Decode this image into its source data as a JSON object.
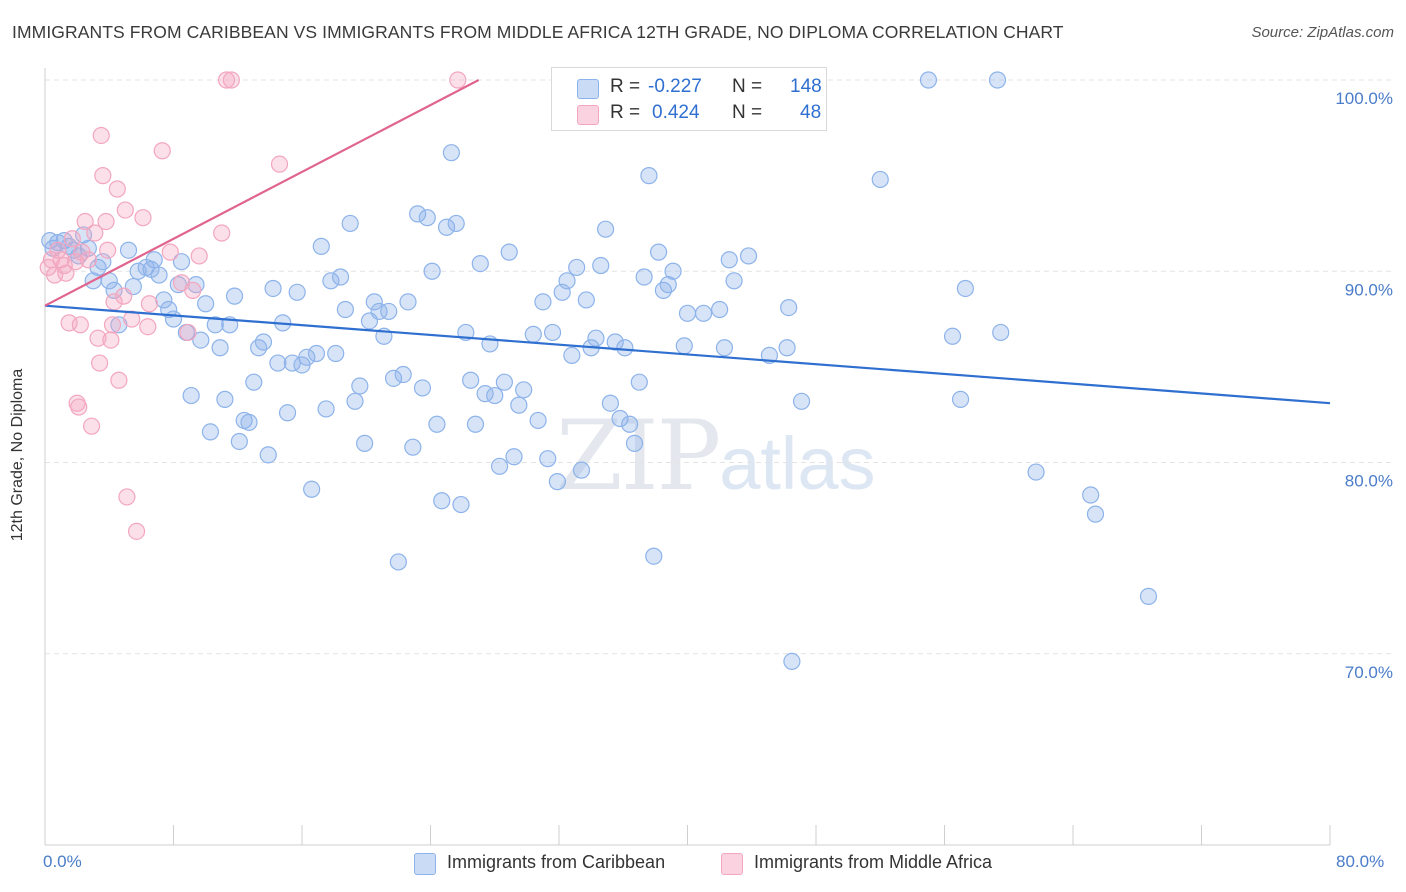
{
  "title": "IMMIGRANTS FROM CARIBBEAN VS IMMIGRANTS FROM MIDDLE AFRICA 12TH GRADE, NO DIPLOMA CORRELATION CHART",
  "source": "Source: ZipAtlas.com",
  "watermark": {
    "zip": "ZIP",
    "atlas": "atlas"
  },
  "legend_top": [
    {
      "r_label": "R =",
      "r_value": "-0.227",
      "n_label": "N =",
      "n_value": "148",
      "color": "#8db3ea"
    },
    {
      "r_label": "R =",
      "r_value": "0.424",
      "n_label": "N =",
      "n_value": "48",
      "color": "#f3a6bf"
    }
  ],
  "legend_bottom": [
    {
      "label": "Immigrants from Caribbean",
      "color": "#8db3ea"
    },
    {
      "label": "Immigrants from Middle Africa",
      "color": "#f3a6bf"
    }
  ],
  "chart_data": {
    "type": "scatter",
    "title": "IMMIGRANTS FROM CARIBBEAN VS IMMIGRANTS FROM MIDDLE AFRICA 12TH GRADE, NO DIPLOMA CORRELATION CHART",
    "xlabel": "",
    "ylabel": "12th Grade, No Diploma",
    "xlim": [
      0,
      80
    ],
    "ylim": [
      60,
      101
    ],
    "x_tick_labels": [
      "0.0%",
      "80.0%"
    ],
    "y_tick_labels": [
      "100.0%",
      "90.0%",
      "80.0%",
      "70.0%"
    ],
    "y_ticks": [
      100,
      90,
      80,
      70
    ],
    "grid": true,
    "legend_placement": "bottom",
    "series": [
      {
        "name": "Immigrants from Caribbean",
        "color": "#8db3ea",
        "trend": {
          "x": [
            0,
            80
          ],
          "y": [
            88.2,
            83.1
          ]
        },
        "points": [
          [
            0.3,
            91.6
          ],
          [
            0.5,
            91.2
          ],
          [
            0.8,
            91.5
          ],
          [
            1.2,
            91.6
          ],
          [
            1.5,
            91.3
          ],
          [
            1.8,
            91.1
          ],
          [
            2.1,
            90.8
          ],
          [
            2.4,
            91.9
          ],
          [
            2.7,
            91.2
          ],
          [
            3.0,
            89.5
          ],
          [
            3.3,
            90.2
          ],
          [
            3.6,
            90.5
          ],
          [
            4.0,
            89.5
          ],
          [
            4.3,
            89.0
          ],
          [
            4.6,
            87.2
          ],
          [
            5.2,
            91.1
          ],
          [
            5.5,
            89.2
          ],
          [
            5.8,
            90.0
          ],
          [
            6.3,
            90.2
          ],
          [
            6.6,
            90.1
          ],
          [
            6.8,
            90.6
          ],
          [
            7.1,
            89.8
          ],
          [
            7.4,
            88.5
          ],
          [
            7.7,
            88.0
          ],
          [
            8.0,
            87.5
          ],
          [
            8.3,
            89.3
          ],
          [
            8.5,
            90.5
          ],
          [
            8.8,
            86.8
          ],
          [
            9.1,
            83.5
          ],
          [
            9.4,
            89.3
          ],
          [
            9.7,
            86.4
          ],
          [
            10.0,
            88.3
          ],
          [
            10.3,
            81.6
          ],
          [
            10.6,
            87.2
          ],
          [
            10.9,
            86.0
          ],
          [
            11.2,
            83.3
          ],
          [
            11.5,
            87.2
          ],
          [
            11.8,
            88.7
          ],
          [
            12.1,
            81.1
          ],
          [
            12.4,
            82.2
          ],
          [
            12.7,
            82.1
          ],
          [
            13.0,
            84.2
          ],
          [
            13.3,
            86.0
          ],
          [
            13.6,
            86.3
          ],
          [
            13.9,
            80.4
          ],
          [
            14.2,
            89.1
          ],
          [
            14.5,
            85.2
          ],
          [
            14.8,
            87.3
          ],
          [
            15.1,
            82.6
          ],
          [
            15.4,
            85.2
          ],
          [
            15.7,
            88.9
          ],
          [
            16.0,
            85.1
          ],
          [
            16.3,
            85.5
          ],
          [
            16.6,
            78.6
          ],
          [
            16.9,
            85.7
          ],
          [
            17.2,
            91.3
          ],
          [
            17.5,
            82.8
          ],
          [
            17.8,
            89.5
          ],
          [
            18.1,
            85.7
          ],
          [
            18.4,
            89.7
          ],
          [
            18.7,
            88.0
          ],
          [
            19.0,
            92.5
          ],
          [
            19.3,
            83.2
          ],
          [
            19.6,
            84.0
          ],
          [
            19.9,
            81.0
          ],
          [
            20.2,
            87.4
          ],
          [
            20.5,
            88.4
          ],
          [
            20.8,
            87.9
          ],
          [
            21.1,
            86.6
          ],
          [
            21.4,
            87.9
          ],
          [
            21.7,
            84.4
          ],
          [
            22.0,
            74.8
          ],
          [
            22.3,
            84.6
          ],
          [
            22.6,
            88.4
          ],
          [
            22.9,
            80.8
          ],
          [
            23.2,
            93.0
          ],
          [
            23.5,
            83.9
          ],
          [
            23.8,
            92.8
          ],
          [
            24.1,
            90.0
          ],
          [
            24.4,
            82.0
          ],
          [
            24.7,
            78.0
          ],
          [
            25.0,
            92.3
          ],
          [
            25.3,
            96.2
          ],
          [
            25.6,
            92.5
          ],
          [
            25.9,
            77.8
          ],
          [
            26.2,
            86.8
          ],
          [
            26.5,
            84.3
          ],
          [
            26.8,
            82.0
          ],
          [
            27.1,
            90.4
          ],
          [
            27.4,
            83.6
          ],
          [
            27.7,
            86.2
          ],
          [
            28.0,
            83.5
          ],
          [
            28.3,
            79.8
          ],
          [
            28.6,
            84.2
          ],
          [
            28.9,
            91.0
          ],
          [
            29.2,
            80.3
          ],
          [
            29.5,
            83.0
          ],
          [
            29.8,
            83.8
          ],
          [
            30.4,
            86.7
          ],
          [
            30.7,
            82.2
          ],
          [
            31.0,
            88.4
          ],
          [
            31.3,
            80.2
          ],
          [
            31.6,
            86.8
          ],
          [
            31.9,
            79.0
          ],
          [
            32.2,
            88.9
          ],
          [
            32.5,
            89.5
          ],
          [
            32.8,
            85.6
          ],
          [
            33.1,
            90.2
          ],
          [
            33.4,
            79.6
          ],
          [
            33.7,
            88.5
          ],
          [
            34.0,
            86.0
          ],
          [
            34.3,
            86.5
          ],
          [
            34.6,
            90.3
          ],
          [
            34.9,
            92.2
          ],
          [
            35.2,
            83.1
          ],
          [
            35.5,
            86.3
          ],
          [
            35.8,
            82.3
          ],
          [
            36.1,
            86.0
          ],
          [
            36.4,
            82.0
          ],
          [
            36.7,
            81.0
          ],
          [
            37.0,
            84.2
          ],
          [
            37.3,
            89.7
          ],
          [
            37.6,
            95.0
          ],
          [
            37.9,
            75.1
          ],
          [
            38.2,
            91.0
          ],
          [
            38.5,
            89.0
          ],
          [
            38.8,
            89.3
          ],
          [
            39.1,
            90.0
          ],
          [
            39.8,
            86.1
          ],
          [
            40.0,
            87.8
          ],
          [
            41.0,
            87.8
          ],
          [
            42.0,
            88.0
          ],
          [
            42.3,
            86.0
          ],
          [
            42.6,
            90.6
          ],
          [
            42.9,
            89.5
          ],
          [
            43.8,
            90.8
          ],
          [
            45.1,
            85.6
          ],
          [
            46.3,
            88.1
          ],
          [
            52.0,
            94.8
          ],
          [
            56.5,
            86.6
          ],
          [
            57.0,
            83.3
          ],
          [
            57.3,
            89.1
          ],
          [
            59.5,
            86.8
          ],
          [
            61.7,
            79.5
          ],
          [
            65.1,
            78.3
          ],
          [
            65.4,
            77.3
          ],
          [
            68.7,
            73.0
          ],
          [
            46.2,
            86.0
          ],
          [
            47.1,
            83.2
          ],
          [
            55.0,
            100.0
          ],
          [
            59.3,
            100.0
          ],
          [
            46.5,
            69.6
          ]
        ]
      },
      {
        "name": "Immigrants from Middle Africa",
        "color": "#f3a6bf",
        "trend": {
          "x": [
            0,
            27
          ],
          "y": [
            88.2,
            100.0
          ]
        },
        "points": [
          [
            0.2,
            90.2
          ],
          [
            0.4,
            90.6
          ],
          [
            0.6,
            89.8
          ],
          [
            0.8,
            91.1
          ],
          [
            1.0,
            90.6
          ],
          [
            1.2,
            90.3
          ],
          [
            1.3,
            89.9
          ],
          [
            1.5,
            87.3
          ],
          [
            1.7,
            91.7
          ],
          [
            1.9,
            90.5
          ],
          [
            2.0,
            83.1
          ],
          [
            2.1,
            82.9
          ],
          [
            2.3,
            91.0
          ],
          [
            2.5,
            92.6
          ],
          [
            2.7,
            90.6
          ],
          [
            2.9,
            81.9
          ],
          [
            3.1,
            92.0
          ],
          [
            3.3,
            86.5
          ],
          [
            3.4,
            85.2
          ],
          [
            3.5,
            97.1
          ],
          [
            3.6,
            95.0
          ],
          [
            3.8,
            92.6
          ],
          [
            3.9,
            91.1
          ],
          [
            4.1,
            86.4
          ],
          [
            4.2,
            87.2
          ],
          [
            4.5,
            94.3
          ],
          [
            4.6,
            84.3
          ],
          [
            4.9,
            88.7
          ],
          [
            5.0,
            93.2
          ],
          [
            5.1,
            78.2
          ],
          [
            5.4,
            87.5
          ],
          [
            5.7,
            76.4
          ],
          [
            6.1,
            92.8
          ],
          [
            6.4,
            87.1
          ],
          [
            6.5,
            88.3
          ],
          [
            7.3,
            96.3
          ],
          [
            7.8,
            91.0
          ],
          [
            8.5,
            89.4
          ],
          [
            8.9,
            86.8
          ],
          [
            9.2,
            89.0
          ],
          [
            11.0,
            92.0
          ],
          [
            11.3,
            100.0
          ],
          [
            11.6,
            100.0
          ],
          [
            14.6,
            95.6
          ],
          [
            25.7,
            100.0
          ],
          [
            9.6,
            90.8
          ],
          [
            2.2,
            87.2
          ],
          [
            4.3,
            88.4
          ]
        ]
      }
    ]
  }
}
